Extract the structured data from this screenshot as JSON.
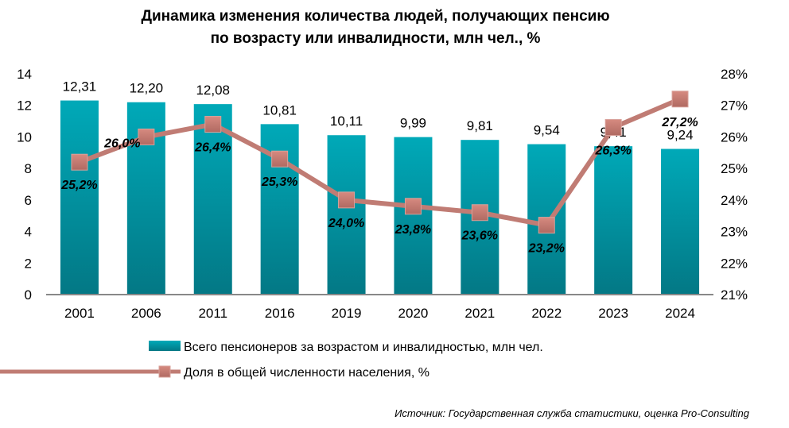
{
  "chart_data": {
    "type": "bar+line",
    "title_lines": [
      "Динамика изменения количества людей, получающих пенсию",
      "по возрасту или инвалидности, млн чел., %"
    ],
    "categories": [
      "2001",
      "2006",
      "2011",
      "2016",
      "2019",
      "2020",
      "2021",
      "2022",
      "2023",
      "2024"
    ],
    "series": [
      {
        "name": "Всего пенсионеров за возрастом и инвалидностью, млн чел.",
        "type": "bar",
        "axis": "left",
        "values": [
          12.31,
          12.2,
          12.08,
          10.81,
          10.11,
          9.99,
          9.81,
          9.54,
          9.41,
          9.24
        ],
        "labels": [
          "12,31",
          "12,20",
          "12,08",
          "10,81",
          "10,11",
          "9,99",
          "9,81",
          "9,54",
          "9,41",
          "9,24"
        ],
        "color": "#0a9aa6"
      },
      {
        "name": "Доля в общей численности населения, %",
        "type": "line",
        "axis": "right",
        "values": [
          25.2,
          26.0,
          26.4,
          25.3,
          24.0,
          23.8,
          23.6,
          23.2,
          26.3,
          27.2
        ],
        "labels": [
          "25,2%",
          "26,0%",
          "26,4%",
          "25,3%",
          "24,0%",
          "23,8%",
          "23,6%",
          "23,2%",
          "26,3%",
          "27,2%"
        ],
        "color": "#c07c74"
      }
    ],
    "yleft": {
      "lim": [
        0,
        14
      ],
      "ticks": [
        "0",
        "2",
        "4",
        "6",
        "8",
        "10",
        "12",
        "14"
      ]
    },
    "yright": {
      "lim": [
        21,
        28
      ],
      "ticks": [
        "21%",
        "22%",
        "23%",
        "24%",
        "25%",
        "26%",
        "27%",
        "28%"
      ]
    },
    "legend_position": "bottom",
    "grid": false
  },
  "source": "Источник: Государственная служба статистики, оценка Pro-Consulting"
}
